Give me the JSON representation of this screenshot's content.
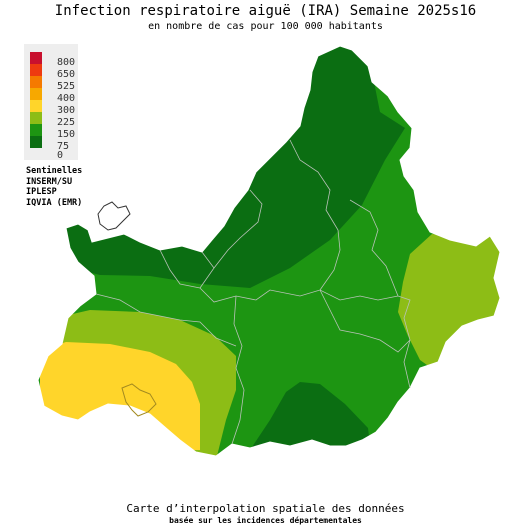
{
  "header": {
    "title": "Infection respiratoire aiguë (IRA) Semaine 2025s16",
    "subtitle": "en nombre de cas pour 100 000 habitants"
  },
  "legend": {
    "items": [
      {
        "label": "800",
        "color": "#c8102e"
      },
      {
        "label": "650",
        "color": "#ee3a10"
      },
      {
        "label": "525",
        "color": "#f57a00"
      },
      {
        "label": "400",
        "color": "#f7a800"
      },
      {
        "label": "300",
        "color": "#ffd52a"
      },
      {
        "label": "225",
        "color": "#8dbd16"
      },
      {
        "label": "150",
        "color": "#1d9512"
      },
      {
        "label": "75",
        "color": "#0b6e12"
      },
      {
        "label": "0",
        "color": ""
      }
    ]
  },
  "sources": [
    "Sentinelles",
    "INSERM/SU",
    "IPLESP",
    "IQVIA (EMR)"
  ],
  "footer": {
    "caption": "Carte d’interpolation spatiale des données",
    "caption2": "basée sur les incidences départementales"
  },
  "colors": {
    "dark_green": "#0b6e12",
    "green": "#1d9512",
    "light_green": "#8dbd16",
    "yellow": "#ffd52a",
    "borders": "#9aa59a"
  }
}
